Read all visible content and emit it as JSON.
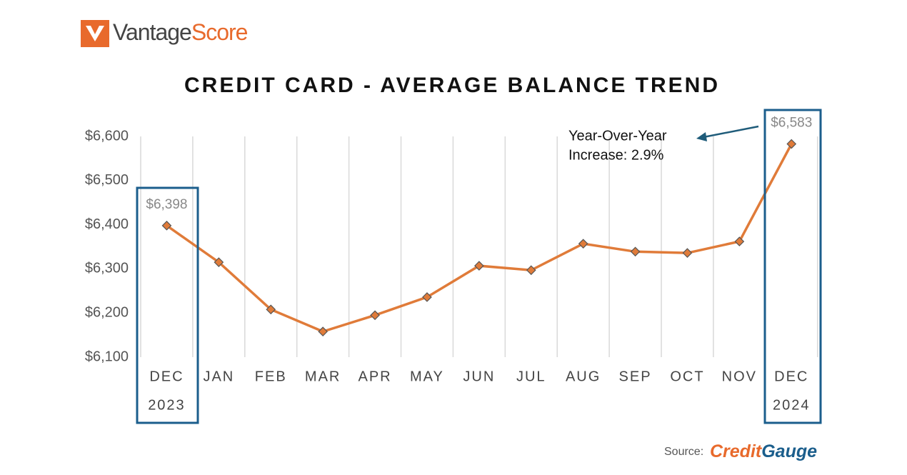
{
  "header": {
    "logo": [
      "Vantage",
      "Score"
    ]
  },
  "chart_data": {
    "type": "line",
    "title": "CREDIT CARD - AVERAGE BALANCE TREND",
    "categories": [
      [
        "DEC",
        "2023"
      ],
      "JAN",
      "FEB",
      "MAR",
      "APR",
      "MAY",
      "JUN",
      "JUL",
      "AUG",
      "SEP",
      "OCT",
      "NOV",
      [
        "DEC",
        "2024"
      ]
    ],
    "values": [
      6398,
      6315,
      6208,
      6158,
      6195,
      6236,
      6307,
      6297,
      6357,
      6339,
      6336,
      6362,
      6583
    ],
    "value_labels": [
      "$6,398",
      null,
      null,
      null,
      null,
      null,
      null,
      null,
      null,
      null,
      null,
      null,
      "$6,583"
    ],
    "color": "#e07b39",
    "ylim": [
      6100,
      6600
    ],
    "yticks": [
      {
        "value": 6100,
        "label": "$6,100"
      },
      {
        "value": 6200,
        "label": "$6,200"
      },
      {
        "value": 6300,
        "label": "$6,300"
      },
      {
        "value": 6400,
        "label": "$6,400"
      },
      {
        "value": 6500,
        "label": "$6,500"
      },
      {
        "value": 6600,
        "label": "$6,600"
      }
    ],
    "annotation": [
      "Year-Over-Year",
      "Increase: 2.9%"
    ]
  },
  "footer": {
    "source_label": "Source:",
    "source_name": [
      "Credit",
      "Gauge"
    ]
  }
}
